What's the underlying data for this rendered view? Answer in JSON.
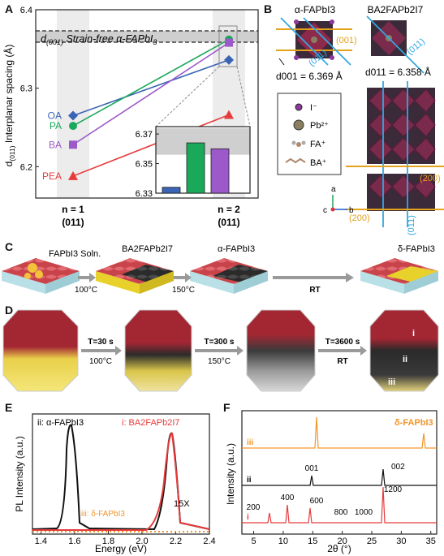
{
  "panels": {
    "A": "A",
    "B": "B",
    "C": "C",
    "D": "D",
    "E": "E",
    "F": "F"
  },
  "colors": {
    "OA": "#3a64b4",
    "PA": "#1aa85a",
    "BA": "#9b59c9",
    "PEA": "#e63b3b",
    "gold": "#e3a21a",
    "blue": "#34a7e0",
    "dark": "#111111",
    "orange": "#f0962a"
  },
  "panelA": {
    "ylabel": "d(011) Interplanar spacing (Å)",
    "ylabel_main": "d",
    "ylabel_sub": "(011)",
    "ylabel_rest": " Interplanar spacing (Å)",
    "yticks": [
      "6.4",
      "6.3",
      "6.2"
    ],
    "ref_label_main": "d",
    "ref_label_sub": "(001)",
    "ref_label_rest": " Strain-free α-FAPbI",
    "ref_label_sub2": "3",
    "x_labels": [
      [
        "n = 1",
        "(011)"
      ],
      [
        "n = 2",
        "(011)"
      ]
    ],
    "series": [
      {
        "name": "OA",
        "y": [
          6.265,
          6.336
        ]
      },
      {
        "name": "PA",
        "y": [
          6.252,
          6.362
        ]
      },
      {
        "name": "BA",
        "y": [
          6.228,
          6.358
        ]
      },
      {
        "name": "PEA",
        "y": [
          6.188,
          6.266
        ]
      }
    ],
    "ylim": [
      6.16,
      6.4
    ],
    "ref_value": 6.369,
    "inset": {
      "yticks": [
        "6.37",
        "6.35",
        "6.33"
      ],
      "ylim": [
        6.33,
        6.375
      ],
      "values": [
        6.334,
        6.364,
        6.36
      ]
    }
  },
  "panelB": {
    "title1": "α-FAPbI3",
    "title2": "BA2FAPb2I7",
    "d001": "d001 = 6.369 Å",
    "d011": "d011 = 6.358 Å",
    "legend": [
      "I⁻",
      "Pb²⁺",
      "FA⁺",
      "BA⁺"
    ],
    "labels_gold": [
      "(001)",
      "(200)",
      "(200)"
    ],
    "labels_blue": [
      "(011)",
      "(011)"
    ],
    "axes": [
      "a",
      "b",
      "c"
    ]
  },
  "panelC": {
    "label_fapbi3": "FAPbI3 Soln.",
    "label_ba": "BA2FAPb2I7",
    "label_alpha": "α-FAPbI3",
    "label_delta": "δ-FAPbI3",
    "steps": [
      "100°C",
      "150°C",
      "RT"
    ]
  },
  "panelD": {
    "steps": [
      [
        "T=30 s",
        "100°C"
      ],
      [
        "T=300 s",
        "150°C"
      ],
      [
        "T=3600 s",
        "RT"
      ]
    ],
    "marks": [
      "i",
      "ii",
      "iii"
    ]
  },
  "panelE": {
    "xlabel": "Energy (eV)",
    "ylabel": "PL Intensity (a.u.)",
    "xticks": [
      "1.4",
      "1.6",
      "1.8",
      "2.0",
      "2.2",
      "2.4"
    ],
    "xlim": [
      1.35,
      2.4
    ],
    "legend_ii": "ii: α-FAPbI3",
    "legend_i": "i: BA2FAPb2I7",
    "legend_iii": "iii: δ-FAPbI3",
    "factor": "15X"
  },
  "panelF": {
    "xlabel": "2θ (°)",
    "ylabel": "Intensity (a.u.)",
    "xticks": [
      "5",
      "10",
      "15",
      "20",
      "25",
      "30",
      "35"
    ],
    "xlim": [
      3,
      36
    ],
    "title": "δ-FAPbI3",
    "traces": [
      "iii",
      "ii",
      "i"
    ],
    "peaks_ii": [
      "001",
      "002"
    ],
    "peaks_i": [
      "200",
      "400",
      "600",
      "800",
      "1000",
      "1200"
    ]
  }
}
